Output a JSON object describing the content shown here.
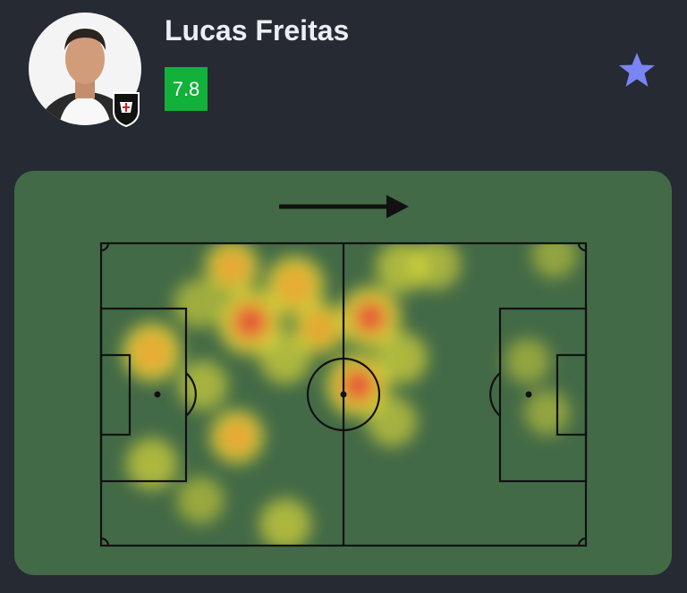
{
  "player": {
    "name": "Lucas Freitas",
    "rating": "7.8",
    "rating_color": "#11b13a",
    "avatar_icon": "player-photo",
    "team_badge_icon": "club-crest",
    "favorite_icon": "star-icon",
    "favorite_color": "#7b84f5"
  },
  "heatmap": {
    "attack_direction": "right",
    "pitch_color": "#436a47",
    "points": [
      {
        "x": 30.8,
        "y": 26,
        "intensity": 1.0
      },
      {
        "x": 10.5,
        "y": 36,
        "intensity": 0.75
      },
      {
        "x": 40,
        "y": 14,
        "intensity": 0.75
      },
      {
        "x": 27,
        "y": 8,
        "intensity": 0.6
      },
      {
        "x": 55.5,
        "y": 24.5,
        "intensity": 0.85
      },
      {
        "x": 53,
        "y": 47,
        "intensity": 0.9
      },
      {
        "x": 62,
        "y": 8,
        "intensity": 0.5
      },
      {
        "x": 69,
        "y": 7,
        "intensity": 0.45
      },
      {
        "x": 38,
        "y": 38,
        "intensity": 0.5
      },
      {
        "x": 28,
        "y": 64,
        "intensity": 0.6
      },
      {
        "x": 10.5,
        "y": 73,
        "intensity": 0.5
      },
      {
        "x": 38,
        "y": 93,
        "intensity": 0.5
      },
      {
        "x": 60,
        "y": 59,
        "intensity": 0.45
      },
      {
        "x": 93.5,
        "y": 4,
        "intensity": 0.3
      },
      {
        "x": 88,
        "y": 39,
        "intensity": 0.3
      },
      {
        "x": 92,
        "y": 56,
        "intensity": 0.3
      },
      {
        "x": 20.5,
        "y": 85,
        "intensity": 0.35
      },
      {
        "x": 62,
        "y": 38,
        "intensity": 0.5
      },
      {
        "x": 21,
        "y": 47,
        "intensity": 0.45
      },
      {
        "x": 45,
        "y": 28,
        "intensity": 0.55
      },
      {
        "x": 20,
        "y": 20,
        "intensity": 0.4
      }
    ]
  }
}
